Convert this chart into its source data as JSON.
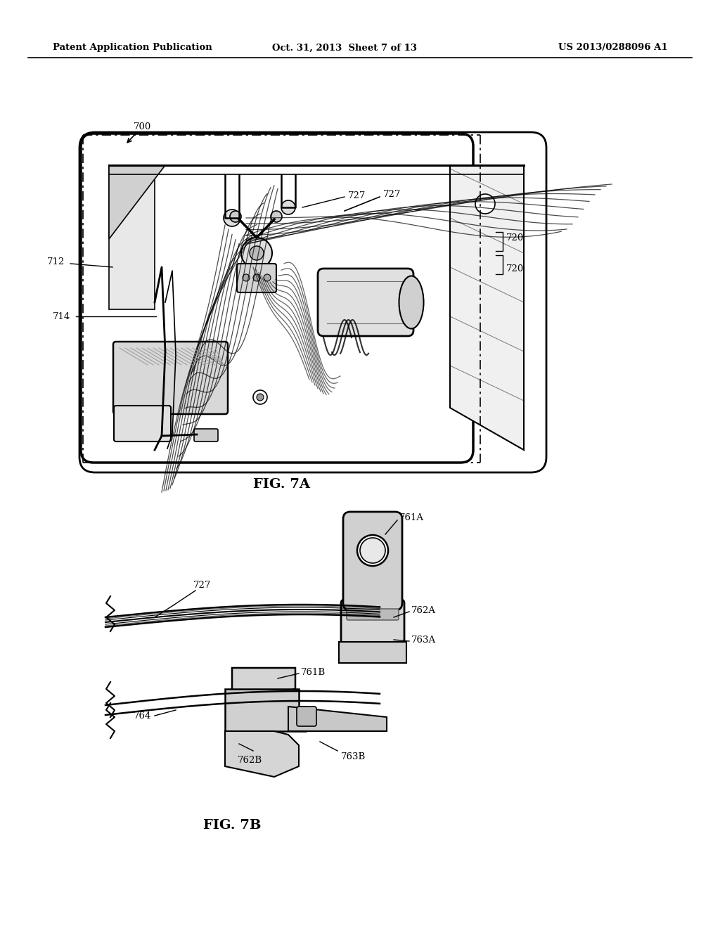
{
  "background_color": "#ffffff",
  "header_left": "Patent Application Publication",
  "header_center": "Oct. 31, 2013  Sheet 7 of 13",
  "header_right": "US 2013/0288096 A1",
  "fig7a_label": "FIG. 7A",
  "fig7b_label": "FIG. 7B"
}
